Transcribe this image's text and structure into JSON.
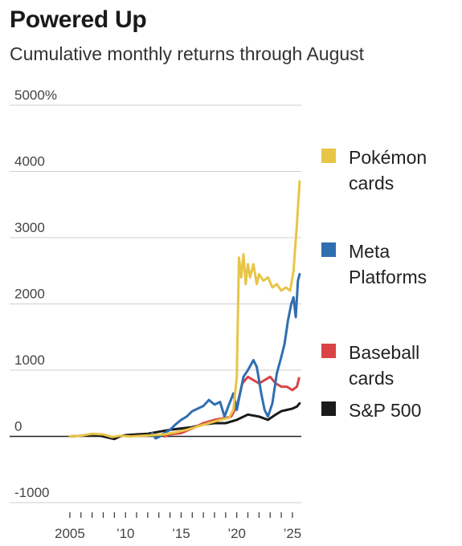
{
  "title": "Powered Up",
  "subtitle": "Cumulative monthly returns through August",
  "chart_data": {
    "type": "line",
    "ylim": [
      -1000,
      5000
    ],
    "xlim": [
      2004.5,
      2025.8
    ],
    "y_ticks": [
      {
        "value": 5000,
        "label": "5000%"
      },
      {
        "value": 4000,
        "label": "4000"
      },
      {
        "value": 3000,
        "label": "3000"
      },
      {
        "value": 2000,
        "label": "2000"
      },
      {
        "value": 1000,
        "label": "1000"
      },
      {
        "value": 0,
        "label": "0"
      },
      {
        "value": -1000,
        "label": "-1000"
      }
    ],
    "x_ticks": [
      {
        "value": 2005,
        "label": "2005"
      },
      {
        "value": 2010,
        "label": "’10"
      },
      {
        "value": 2015,
        "label": "’15"
      },
      {
        "value": 2020,
        "label": "’20"
      },
      {
        "value": 2025,
        "label": "’25"
      }
    ],
    "grid": true,
    "legend_placement": "right",
    "series": [
      {
        "name": "Pokémon\ncards",
        "color": "#e8c547",
        "points": [
          [
            2005,
            0
          ],
          [
            2006,
            10
          ],
          [
            2007,
            40
          ],
          [
            2008,
            30
          ],
          [
            2008.8,
            -10
          ],
          [
            2009.5,
            10
          ],
          [
            2010.5,
            0
          ],
          [
            2011.5,
            10
          ],
          [
            2012.5,
            20
          ],
          [
            2013.5,
            30
          ],
          [
            2014.5,
            60
          ],
          [
            2015.5,
            100
          ],
          [
            2016.5,
            150
          ],
          [
            2017.5,
            200
          ],
          [
            2018.5,
            250
          ],
          [
            2019.3,
            280
          ],
          [
            2019.7,
            400
          ],
          [
            2020.0,
            900
          ],
          [
            2020.2,
            2700
          ],
          [
            2020.4,
            2400
          ],
          [
            2020.6,
            2750
          ],
          [
            2020.8,
            2300
          ],
          [
            2021.0,
            2600
          ],
          [
            2021.2,
            2400
          ],
          [
            2021.5,
            2600
          ],
          [
            2021.8,
            2300
          ],
          [
            2022.0,
            2450
          ],
          [
            2022.4,
            2350
          ],
          [
            2022.8,
            2400
          ],
          [
            2023.2,
            2250
          ],
          [
            2023.6,
            2300
          ],
          [
            2024.0,
            2200
          ],
          [
            2024.4,
            2250
          ],
          [
            2024.8,
            2200
          ],
          [
            2025.1,
            2500
          ],
          [
            2025.4,
            3200
          ],
          [
            2025.65,
            3850
          ]
        ]
      },
      {
        "name": "Meta\nPlatforms",
        "color": "#2f6fb0",
        "points": [
          [
            2012.4,
            50
          ],
          [
            2012.7,
            -30
          ],
          [
            2013.0,
            -10
          ],
          [
            2013.5,
            50
          ],
          [
            2014.0,
            100
          ],
          [
            2014.5,
            180
          ],
          [
            2015.0,
            250
          ],
          [
            2015.5,
            300
          ],
          [
            2016.0,
            380
          ],
          [
            2016.5,
            420
          ],
          [
            2017.0,
            460
          ],
          [
            2017.5,
            550
          ],
          [
            2018.0,
            480
          ],
          [
            2018.5,
            520
          ],
          [
            2018.9,
            300
          ],
          [
            2019.3,
            480
          ],
          [
            2019.7,
            650
          ],
          [
            2020.0,
            400
          ],
          [
            2020.3,
            650
          ],
          [
            2020.6,
            900
          ],
          [
            2021.0,
            1000
          ],
          [
            2021.5,
            1150
          ],
          [
            2021.8,
            1050
          ],
          [
            2022.2,
            650
          ],
          [
            2022.5,
            400
          ],
          [
            2022.8,
            300
          ],
          [
            2023.2,
            500
          ],
          [
            2023.6,
            950
          ],
          [
            2024.0,
            1200
          ],
          [
            2024.3,
            1400
          ],
          [
            2024.6,
            1750
          ],
          [
            2024.9,
            2000
          ],
          [
            2025.1,
            2100
          ],
          [
            2025.3,
            1800
          ],
          [
            2025.5,
            2350
          ],
          [
            2025.65,
            2450
          ]
        ]
      },
      {
        "name": "Baseball\ncards",
        "color": "#d94345",
        "points": [
          [
            2013.5,
            0
          ],
          [
            2014,
            30
          ],
          [
            2015,
            50
          ],
          [
            2016,
            120
          ],
          [
            2017,
            200
          ],
          [
            2018,
            250
          ],
          [
            2019,
            280
          ],
          [
            2019.5,
            300
          ],
          [
            2020.0,
            450
          ],
          [
            2020.5,
            800
          ],
          [
            2021.0,
            900
          ],
          [
            2021.5,
            850
          ],
          [
            2022.0,
            800
          ],
          [
            2022.5,
            850
          ],
          [
            2023.0,
            900
          ],
          [
            2023.5,
            800
          ],
          [
            2024.0,
            750
          ],
          [
            2024.5,
            750
          ],
          [
            2025.0,
            700
          ],
          [
            2025.4,
            750
          ],
          [
            2025.6,
            880
          ]
        ]
      },
      {
        "name": "S&P 500",
        "color": "#1a1a1a",
        "points": [
          [
            2005,
            0
          ],
          [
            2006,
            10
          ],
          [
            2007,
            30
          ],
          [
            2008,
            0
          ],
          [
            2009.0,
            -40
          ],
          [
            2009.5,
            0
          ],
          [
            2010,
            20
          ],
          [
            2011,
            30
          ],
          [
            2012,
            40
          ],
          [
            2013,
            70
          ],
          [
            2014,
            100
          ],
          [
            2015,
            120
          ],
          [
            2016,
            140
          ],
          [
            2017,
            180
          ],
          [
            2018,
            200
          ],
          [
            2019,
            200
          ],
          [
            2020,
            250
          ],
          [
            2021,
            330
          ],
          [
            2022,
            300
          ],
          [
            2022.8,
            250
          ],
          [
            2023.5,
            330
          ],
          [
            2024,
            380
          ],
          [
            2024.5,
            400
          ],
          [
            2025,
            420
          ],
          [
            2025.4,
            450
          ],
          [
            2025.65,
            500
          ]
        ]
      }
    ]
  }
}
